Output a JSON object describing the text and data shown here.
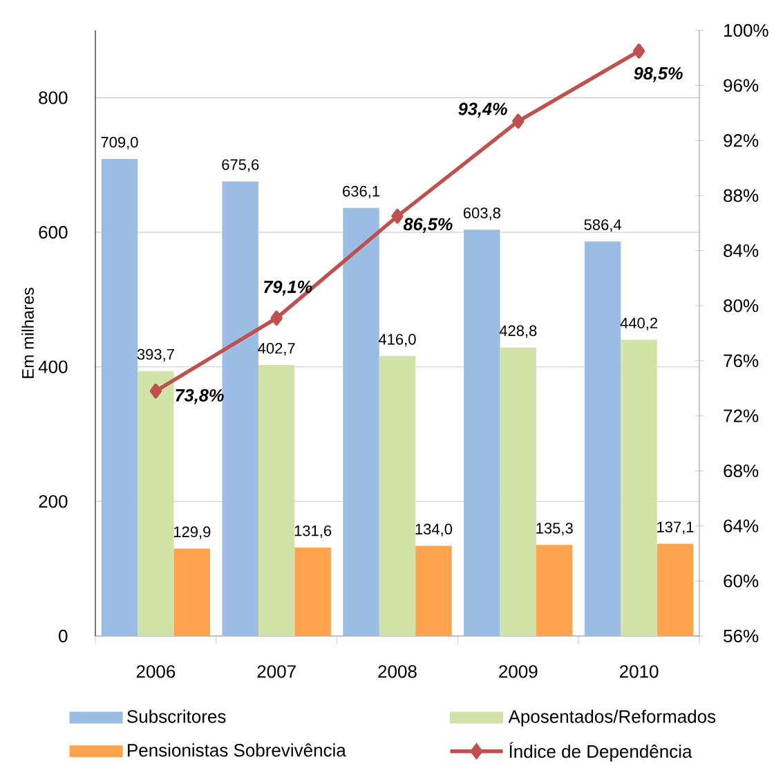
{
  "chart_data": {
    "type": "bar",
    "ylabel": "Em milhares",
    "categories": [
      "2006",
      "2007",
      "2008",
      "2009",
      "2010"
    ],
    "series": [
      {
        "name": "Subscritores",
        "color": "#9BBCE3",
        "values": [
          709.0,
          675.6,
          636.1,
          603.8,
          586.4
        ],
        "value_labels": [
          "709,0",
          "675,6",
          "636,1",
          "603,8",
          "586,4"
        ]
      },
      {
        "name": "Aposentados/Reformados",
        "color": "#D2E3A8",
        "values": [
          393.7,
          402.7,
          416.0,
          428.8,
          440.2
        ],
        "value_labels": [
          "393,7",
          "402,7",
          "416,0",
          "428,8",
          "440,2"
        ]
      },
      {
        "name": "Pensionistas Sobrevivência",
        "color": "#FFA34F",
        "values": [
          129.9,
          131.6,
          134.0,
          135.3,
          137.1
        ],
        "value_labels": [
          "129,9",
          "131,6",
          "134,0",
          "135,3",
          "137,1"
        ]
      },
      {
        "name": "Índice de Dependência",
        "type": "line",
        "axis": "y2",
        "color": "#C0504D",
        "marker": "diamond",
        "values": [
          73.8,
          79.1,
          86.5,
          93.4,
          98.5
        ],
        "value_labels": [
          "73,8%",
          "79,1%",
          "86,5%",
          "93,4%",
          "98,5%"
        ]
      }
    ],
    "ylim": [
      0,
      900
    ],
    "yticks": [
      0,
      200,
      400,
      600,
      800
    ],
    "y2lim": [
      56,
      100
    ],
    "y2ticks": [
      {
        "value": 56,
        "label": "56%"
      },
      {
        "value": 60,
        "label": "60%"
      },
      {
        "value": 64,
        "label": "64%"
      },
      {
        "value": 68,
        "label": "68%"
      },
      {
        "value": 72,
        "label": "72%"
      },
      {
        "value": 76,
        "label": "76%"
      },
      {
        "value": 80,
        "label": "80%"
      },
      {
        "value": 84,
        "label": "84%"
      },
      {
        "value": 88,
        "label": "88%"
      },
      {
        "value": 92,
        "label": "92%"
      },
      {
        "value": 96,
        "label": "96%"
      },
      {
        "value": 100,
        "label": "100%"
      }
    ],
    "grid": "y",
    "legend": "bottom"
  }
}
